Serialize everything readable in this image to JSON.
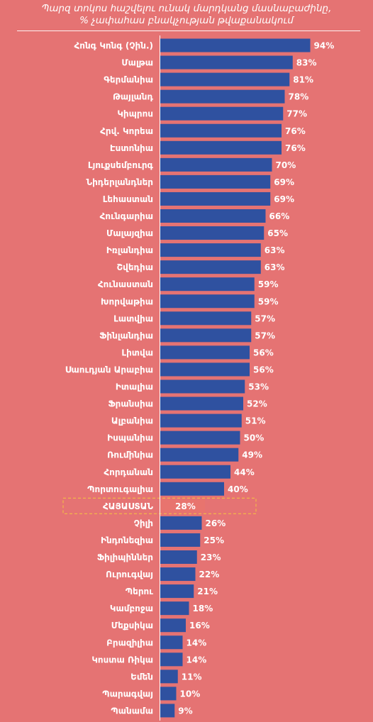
{
  "title": {
    "line1": "Պարզ տոկոս հաշվելու ունակ մարդկանց մասնաբաժինը,",
    "line2": "% չափահաս բնակչության թվաքանակում"
  },
  "colors": {
    "background": "#e57373",
    "bar": "#2f51a0",
    "highlight_bar": "#e8746e",
    "highlight_outline": "#f2b64a",
    "text": "#ffffff"
  },
  "chart_data": {
    "type": "bar",
    "orientation": "horizontal",
    "title": "Պարզ տոկոս հաշվելու ունակ մարդկանց մասնաբաժինը, % չափահաս բնակչության թվաքանակում",
    "categories": [
      "Հոնգ Կոնգ (Չին.)",
      "Մալթա",
      "Գերմանիա",
      "Թայլանդ",
      "Կիպրոս",
      "Հրվ. Կորեա",
      "Էստոնիա",
      "Լյուքսեմբուրգ",
      "Նիդերլանդներ",
      "Լեհաստան",
      "Հունգարիա",
      "Մալայզիա",
      "Իռլանդիա",
      "Շվեդիա",
      "Հունաստան",
      "Խորվաթիա",
      "Լատվիա",
      "Ֆինլանդիա",
      "Լիտվա",
      "Սաուդյան Արաբիա",
      "Իտալիա",
      "Ֆրանսիա",
      "Ալբանիա",
      "Իսպանիա",
      "Ռումինիա",
      "Հորդանան",
      "Պորտուգալիա",
      "ՀԱՅԱՍՏԱՆ",
      "Չիլի",
      "Ինդոնեզիա",
      "Ֆիլիպիններ",
      "Ուրուգվայ",
      "Պերու",
      "Կամբոջա",
      "Մեքսիկա",
      "Բրազիլիա",
      "Կոստա Ռիկա",
      "Եմեն",
      "Պարագվայ",
      "Պանամա"
    ],
    "values": [
      94,
      83,
      81,
      78,
      77,
      76,
      76,
      70,
      69,
      69,
      66,
      65,
      63,
      63,
      59,
      59,
      57,
      57,
      56,
      56,
      53,
      52,
      51,
      50,
      49,
      44,
      40,
      28,
      26,
      25,
      23,
      22,
      21,
      18,
      16,
      14,
      14,
      11,
      10,
      9
    ],
    "value_labels": [
      "94%",
      "83%",
      "81%",
      "78%",
      "77%",
      "76%",
      "76%",
      "70%",
      "69%",
      "69%",
      "66%",
      "65%",
      "63%",
      "63%",
      "59%",
      "59%",
      "57%",
      "57%",
      "56%",
      "56%",
      "53%",
      "52%",
      "51%",
      "50%",
      "49%",
      "44%",
      "40%",
      "28%",
      "26%",
      "25%",
      "23%",
      "22%",
      "21%",
      "18%",
      "16%",
      "14%",
      "14%",
      "11%",
      "10%",
      "9%"
    ],
    "highlight_category": "ՀԱՅԱՍՏԱՆ",
    "xlim": [
      0,
      100
    ],
    "grid": false,
    "legend": "none"
  }
}
